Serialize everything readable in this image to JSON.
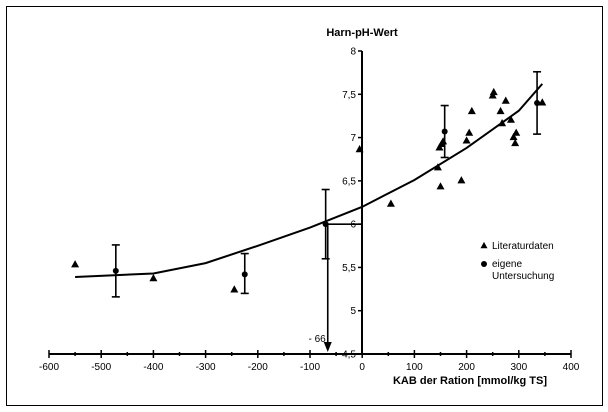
{
  "chart_data": {
    "type": "scatter",
    "title": "",
    "xlabel": "KAB der Ration [mmol/kg TS]",
    "ylabel": "Harn-pH-Wert",
    "xlim": [
      -600,
      400
    ],
    "ylim": [
      4.5,
      8
    ],
    "x_ticks": [
      "-600",
      "-500",
      "-400",
      "-300",
      "-200",
      "-100",
      "0",
      "100",
      "200",
      "300",
      "400"
    ],
    "y_ticks": [
      "4,5",
      "5",
      "5,5",
      "6",
      "6,5",
      "7",
      "7,5",
      "8"
    ],
    "grid": false,
    "legend_position": "right",
    "legend": [
      {
        "marker": "triangle",
        "label": "Literaturdaten"
      },
      {
        "marker": "circle",
        "label": "eigene Untersuchung"
      }
    ],
    "series": [
      {
        "name": "Literaturdaten",
        "marker": "triangle",
        "points": [
          {
            "x": -550,
            "y": 5.53
          },
          {
            "x": -400,
            "y": 5.37
          },
          {
            "x": -245,
            "y": 5.24
          },
          {
            "x": -5,
            "y": 6.86
          },
          {
            "x": 55,
            "y": 6.23
          },
          {
            "x": 145,
            "y": 6.65
          },
          {
            "x": 148,
            "y": 6.88
          },
          {
            "x": 150,
            "y": 6.43
          },
          {
            "x": 152,
            "y": 6.92
          },
          {
            "x": 155,
            "y": 6.95
          },
          {
            "x": 190,
            "y": 6.5
          },
          {
            "x": 200,
            "y": 6.96
          },
          {
            "x": 205,
            "y": 7.05
          },
          {
            "x": 210,
            "y": 7.3
          },
          {
            "x": 250,
            "y": 7.48
          },
          {
            "x": 252,
            "y": 7.52
          },
          {
            "x": 265,
            "y": 7.3
          },
          {
            "x": 268,
            "y": 7.16
          },
          {
            "x": 275,
            "y": 7.42
          },
          {
            "x": 285,
            "y": 7.2
          },
          {
            "x": 290,
            "y": 7.0
          },
          {
            "x": 293,
            "y": 6.93
          },
          {
            "x": 295,
            "y": 7.05
          },
          {
            "x": 345,
            "y": 7.4
          }
        ]
      },
      {
        "name": "eigene Untersuchung",
        "marker": "circle",
        "points": [
          {
            "x": -472,
            "y": 5.46,
            "err_low": 5.16,
            "err_high": 5.76
          },
          {
            "x": -225,
            "y": 5.42,
            "err_low": 5.2,
            "err_high": 5.66
          },
          {
            "x": -70,
            "y": 6.0,
            "err_low": 5.6,
            "err_high": 6.4
          },
          {
            "x": 158,
            "y": 7.07,
            "err_low": 6.77,
            "err_high": 7.37
          },
          {
            "x": 335,
            "y": 7.4,
            "err_low": 7.04,
            "err_high": 7.76
          }
        ]
      },
      {
        "name": "",
        "type": "line",
        "x": [
          -550,
          -400,
          -300,
          -200,
          -100,
          0,
          100,
          200,
          300,
          345
        ],
        "y": [
          5.39,
          5.43,
          5.55,
          5.75,
          5.96,
          6.2,
          6.51,
          6.88,
          7.31,
          7.62
        ]
      }
    ],
    "annotations": [
      {
        "text": "- 66",
        "x": -66,
        "y": 6.0,
        "kind": "arrow-to-axis"
      }
    ]
  }
}
